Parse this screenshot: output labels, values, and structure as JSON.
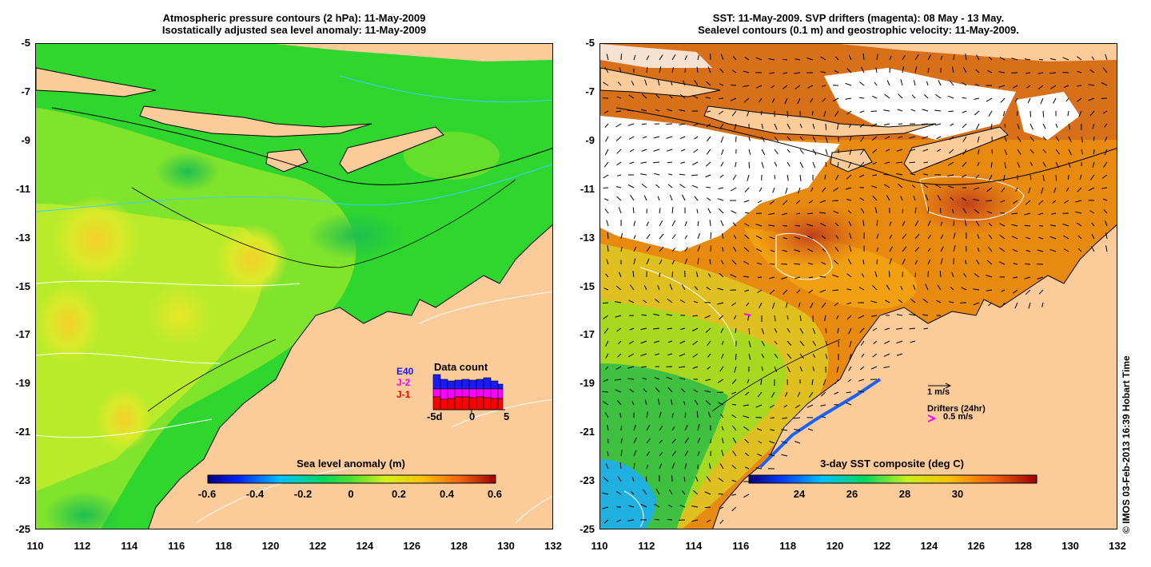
{
  "left_panel": {
    "title_line1": "Atmospheric pressure contours (2 hPa): 11-May-2009",
    "title_line2": "Isostatically adjusted sea level anomaly: 11-May-2009",
    "colorbar": {
      "title": "Sea level anomaly (m)",
      "ticks": [
        "-0.6",
        "-0.4",
        "-0.2",
        "0",
        "0.2",
        "0.4",
        "0.6"
      ]
    },
    "data_count": {
      "title": "Data count",
      "legend": [
        "E40",
        "J-2",
        "J-1"
      ],
      "legend_colors": [
        "#1a1aff",
        "#ff00ff",
        "#ff0000"
      ],
      "x_ticks": [
        "-5d",
        "0",
        "5"
      ]
    }
  },
  "right_panel": {
    "title_line1": "SST: 11-May-2009. SVP drifters (magenta): 08 May - 13 May.",
    "title_line2": "Sealevel contours (0.1 m) and geostrophic velocity: 11-May-2009.",
    "colorbar": {
      "title": "3-day SST composite (deg C)",
      "ticks": [
        "24",
        "26",
        "28",
        "30"
      ]
    },
    "velocity_legend": "1 m/s",
    "drifters_legend": "Drifters (24hr)",
    "drifter_speed": "0.5 m/s"
  },
  "axes": {
    "y_ticks": [
      "-5",
      "-7",
      "-9",
      "-11",
      "-13",
      "-15",
      "-17",
      "-19",
      "-21",
      "-23",
      "-25"
    ],
    "x_ticks": [
      "110",
      "112",
      "114",
      "116",
      "118",
      "120",
      "122",
      "124",
      "126",
      "128",
      "130",
      "132"
    ]
  },
  "copyright": "© IMOS 03-Feb-2013 16:39 Hobart Time",
  "colors": {
    "land": "#fccb9a",
    "ocean_green": "#2ed62e",
    "ocean_yellow": "#c8f02a",
    "sst_orange": "#e88a10",
    "sst_red": "#c0401a"
  }
}
